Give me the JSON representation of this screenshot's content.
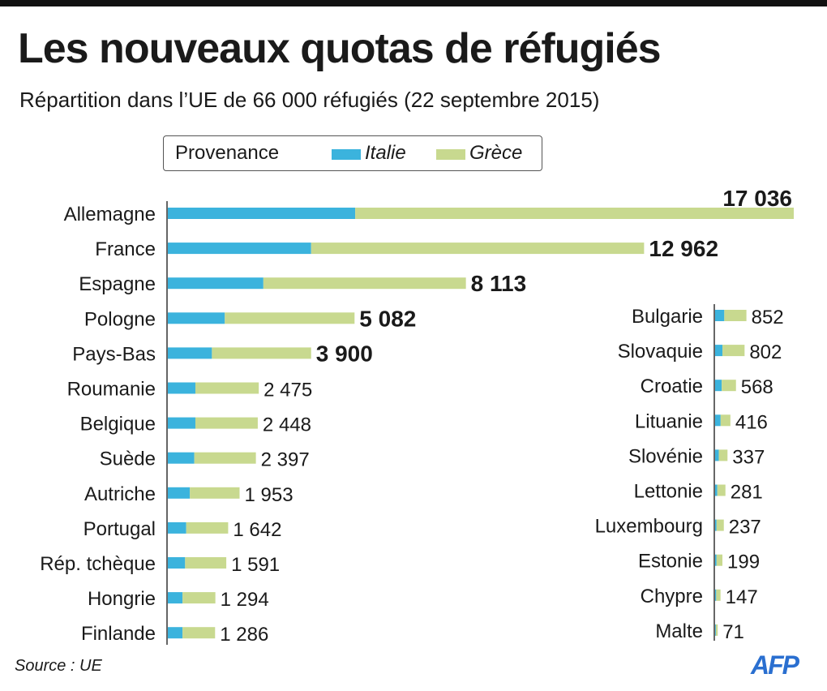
{
  "title": "Les nouveaux quotas de réfugiés",
  "subtitle": "Répartition dans l’UE de 66 000 réfugiés (22 septembre 2015)",
  "legend": {
    "title": "Provenance",
    "italy": "Italie",
    "greece": "Grèce"
  },
  "colors": {
    "italy": "#3bb3dd",
    "greece": "#c8d98f",
    "axis": "#333333"
  },
  "source": "Source : UE",
  "logo": "AFP",
  "chart_data": [
    {
      "type": "bar",
      "orientation": "horizontal",
      "stacked": true,
      "series_names": [
        "Italie",
        "Grèce"
      ],
      "rows": [
        {
          "country": "Allemagne",
          "italy": 5100,
          "greece": 11936,
          "label": "17 036",
          "bold": true
        },
        {
          "country": "France",
          "italy": 3900,
          "greece": 9062,
          "label": "12 962",
          "bold": true
        },
        {
          "country": "Espagne",
          "italy": 2600,
          "greece": 5513,
          "label": "8 113",
          "bold": true
        },
        {
          "country": "Pologne",
          "italy": 1550,
          "greece": 3532,
          "label": "5 082",
          "bold": true
        },
        {
          "country": "Pays-Bas",
          "italy": 1200,
          "greece": 2700,
          "label": "3 900",
          "bold": true
        },
        {
          "country": "Roumanie",
          "italy": 750,
          "greece": 1725,
          "label": "2 475",
          "bold": false
        },
        {
          "country": "Belgique",
          "italy": 750,
          "greece": 1698,
          "label": "2 448",
          "bold": false
        },
        {
          "country": "Suède",
          "italy": 720,
          "greece": 1677,
          "label": "2 397",
          "bold": false
        },
        {
          "country": "Autriche",
          "italy": 600,
          "greece": 1353,
          "label": "1 953",
          "bold": false
        },
        {
          "country": "Portugal",
          "italy": 500,
          "greece": 1142,
          "label": "1 642",
          "bold": false
        },
        {
          "country": "Rép. tchèque",
          "italy": 470,
          "greece": 1121,
          "label": "1 591",
          "bold": false
        },
        {
          "country": "Hongrie",
          "italy": 400,
          "greece": 894,
          "label": "1 294",
          "bold": false
        },
        {
          "country": "Finlande",
          "italy": 400,
          "greece": 886,
          "label": "1 286",
          "bold": false
        }
      ],
      "xlim": [
        0,
        17036
      ]
    },
    {
      "type": "bar",
      "orientation": "horizontal",
      "stacked": true,
      "series_names": [
        "Italie",
        "Grèce"
      ],
      "rows": [
        {
          "country": "Bulgarie",
          "italy": 250,
          "greece": 602,
          "label": "852",
          "bold": false
        },
        {
          "country": "Slovaquie",
          "italy": 200,
          "greece": 602,
          "label": "802",
          "bold": false
        },
        {
          "country": "Croatie",
          "italy": 180,
          "greece": 388,
          "label": "568",
          "bold": false
        },
        {
          "country": "Lituanie",
          "italy": 150,
          "greece": 266,
          "label": "416",
          "bold": false
        },
        {
          "country": "Slovénie",
          "italy": 100,
          "greece": 237,
          "label": "337",
          "bold": false
        },
        {
          "country": "Lettonie",
          "italy": 60,
          "greece": 221,
          "label": "281",
          "bold": false
        },
        {
          "country": "Luxembourg",
          "italy": 40,
          "greece": 197,
          "label": "237",
          "bold": false
        },
        {
          "country": "Estonie",
          "italy": 40,
          "greece": 159,
          "label": "199",
          "bold": false
        },
        {
          "country": "Chypre",
          "italy": 30,
          "greece": 117,
          "label": "147",
          "bold": false
        },
        {
          "country": "Malte",
          "italy": 20,
          "greece": 51,
          "label": "71",
          "bold": false
        }
      ],
      "xlim": [
        0,
        17036
      ]
    }
  ]
}
